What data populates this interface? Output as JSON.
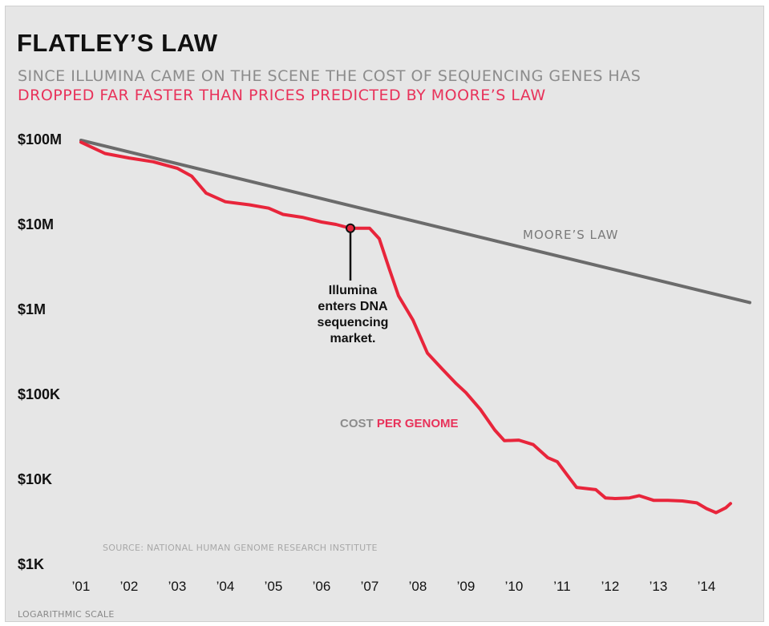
{
  "title": "FLATLEY’S LAW",
  "subtitle_line1": "SINCE ILLUMINA CAME ON THE SCENE THE COST OF SEQUENCING GENES HAS",
  "subtitle_line2": "DROPPED FAR FASTER THAN PRICES PREDICTED BY MOORE’S LAW",
  "scale_note": "LOGARITHMIC SCALE",
  "source_note": "SOURCE: NATIONAL HUMAN GENOME RESEARCH INSTITUTE",
  "colors": {
    "background": "#e6e6e6",
    "cost_line": "#e8253b",
    "moore_line": "#6b6b6b",
    "accent_text": "#e8325a"
  },
  "chart_data": {
    "type": "line",
    "y_scale": "log",
    "x_scale_unit": "year",
    "xlim": [
      2001.0,
      2014.9
    ],
    "ylim": [
      1000,
      100000000
    ],
    "x_tick_values": [
      2001,
      2002,
      2003,
      2004,
      2005,
      2006,
      2007,
      2008,
      2009,
      2010,
      2011,
      2012,
      2013,
      2014
    ],
    "x_tick_labels": [
      "’01",
      "’02",
      "’03",
      "’04",
      "’05",
      "’06",
      "’07",
      "’08",
      "’09",
      "’10",
      "’11",
      "’12",
      "’13",
      "’14"
    ],
    "y_tick_values": [
      1000,
      10000,
      100000,
      1000000,
      10000000,
      100000000
    ],
    "y_tick_labels": [
      "$1K",
      "$10K",
      "$100K",
      "$1M",
      "$10M",
      "$100M"
    ],
    "grid": false,
    "series": [
      {
        "name": "COST PER GENOME",
        "label_parts": [
          "COST ",
          "PER GENOME"
        ],
        "points": [
          [
            2001.0,
            95000000
          ],
          [
            2001.5,
            70000000
          ],
          [
            2002.0,
            62000000
          ],
          [
            2002.5,
            56000000
          ],
          [
            2003.0,
            47000000
          ],
          [
            2003.3,
            38000000
          ],
          [
            2003.6,
            24000000
          ],
          [
            2004.0,
            19000000
          ],
          [
            2004.5,
            17500000
          ],
          [
            2004.9,
            16000000
          ],
          [
            2005.2,
            13500000
          ],
          [
            2005.6,
            12500000
          ],
          [
            2006.0,
            11000000
          ],
          [
            2006.3,
            10300000
          ],
          [
            2006.6,
            9300000
          ],
          [
            2007.0,
            9300000
          ],
          [
            2007.2,
            7000000
          ],
          [
            2007.4,
            3200000
          ],
          [
            2007.6,
            1500000
          ],
          [
            2007.9,
            780000
          ],
          [
            2008.2,
            320000
          ],
          [
            2008.5,
            210000
          ],
          [
            2008.8,
            140000
          ],
          [
            2009.0,
            110000
          ],
          [
            2009.3,
            70000
          ],
          [
            2009.6,
            40000
          ],
          [
            2009.8,
            30000
          ],
          [
            2010.1,
            30500
          ],
          [
            2010.4,
            27000
          ],
          [
            2010.7,
            19000
          ],
          [
            2010.9,
            17000
          ],
          [
            2011.1,
            12000
          ],
          [
            2011.3,
            8500
          ],
          [
            2011.7,
            8000
          ],
          [
            2011.9,
            6400
          ],
          [
            2012.1,
            6300
          ],
          [
            2012.4,
            6400
          ],
          [
            2012.6,
            6800
          ],
          [
            2012.9,
            6000
          ],
          [
            2013.2,
            6000
          ],
          [
            2013.5,
            5900
          ],
          [
            2013.8,
            5600
          ],
          [
            2014.0,
            4800
          ],
          [
            2014.2,
            4300
          ],
          [
            2014.4,
            4900
          ],
          [
            2014.5,
            5500
          ]
        ]
      },
      {
        "name": "MOORE’S LAW",
        "points": [
          [
            2001.0,
            100000000
          ],
          [
            2014.9,
            1250000
          ]
        ]
      }
    ],
    "annotations": [
      {
        "text_lines": [
          "Illumina",
          "enters DNA",
          "sequencing",
          "market."
        ],
        "x": 2006.6,
        "y": 9300000
      }
    ]
  }
}
